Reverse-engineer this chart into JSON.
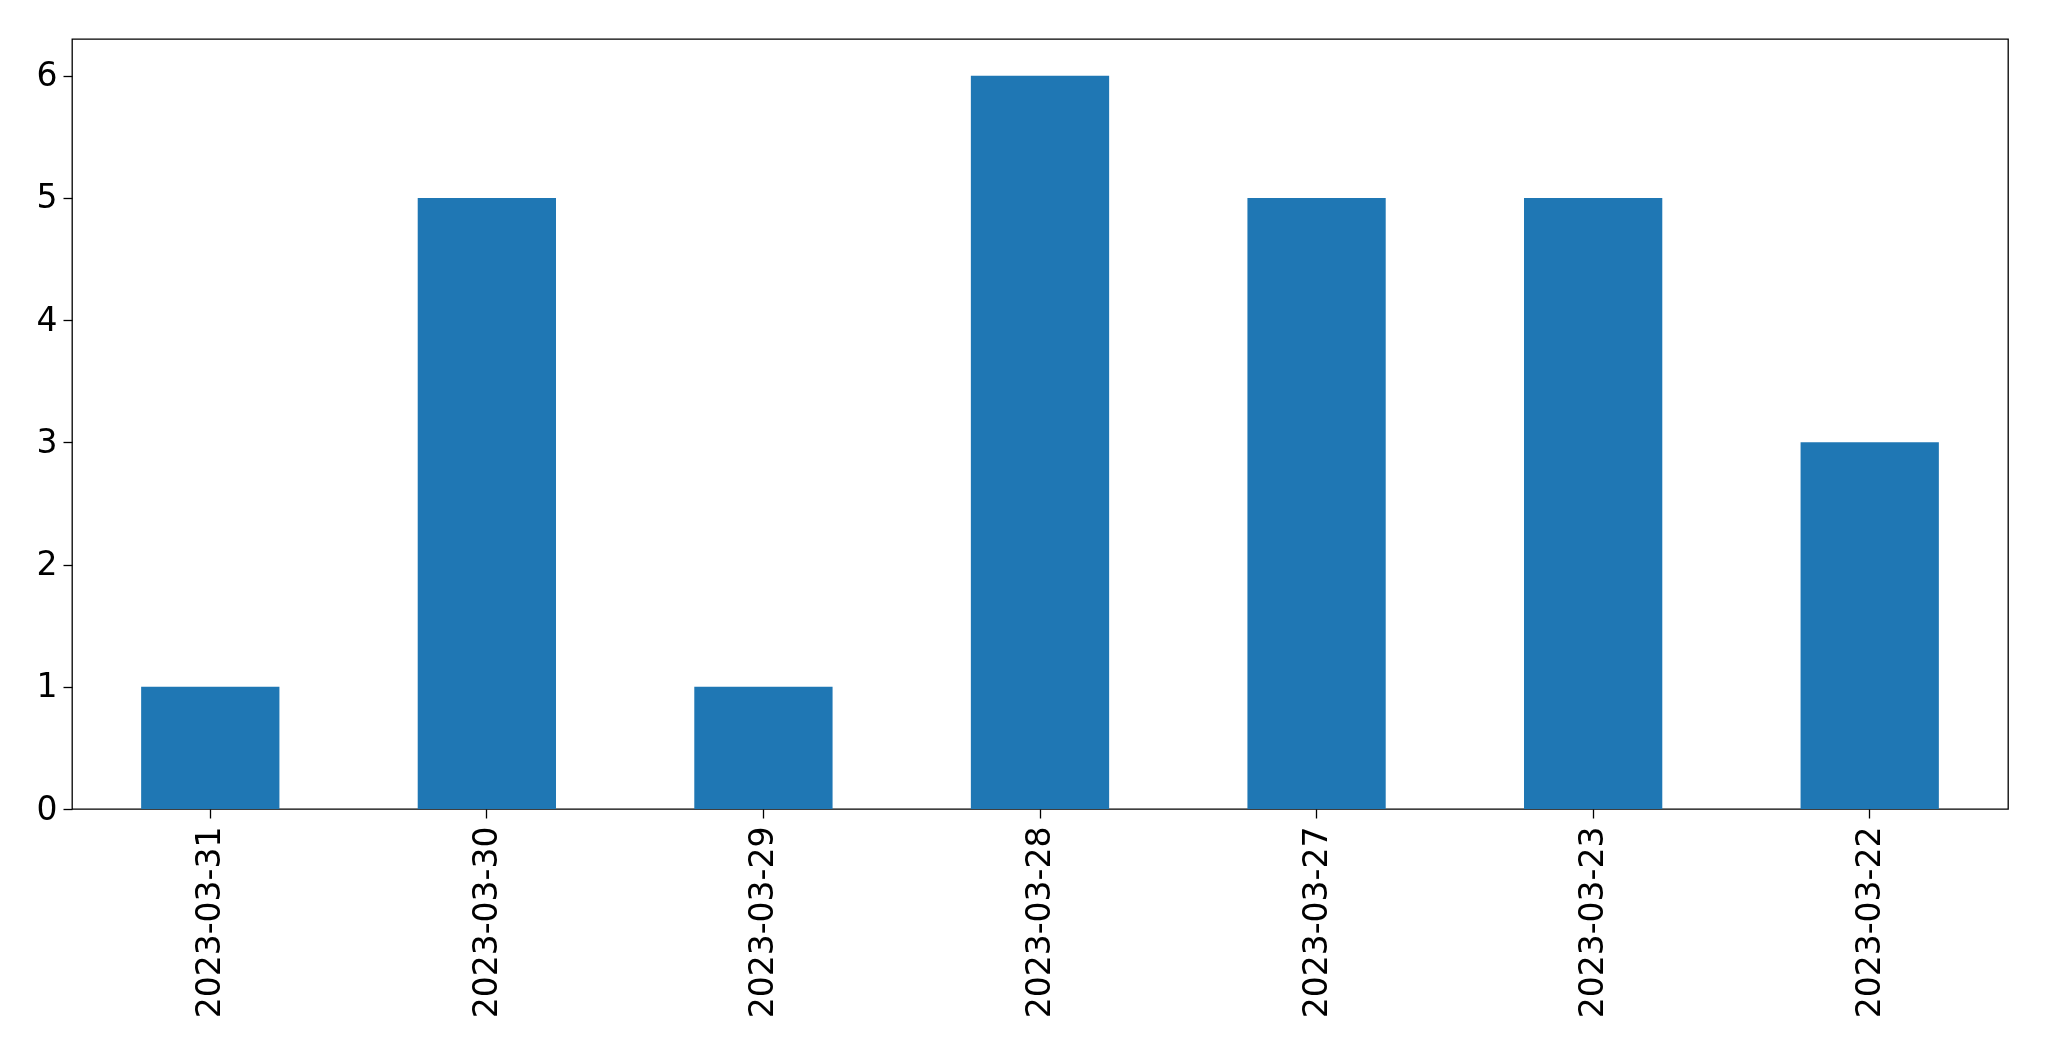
{
  "chart_data": {
    "type": "bar",
    "categories": [
      "2023-03-31",
      "2023-03-30",
      "2023-03-29",
      "2023-03-28",
      "2023-03-27",
      "2023-03-23",
      "2023-03-22"
    ],
    "values": [
      1,
      5,
      1,
      6,
      5,
      5,
      3
    ],
    "color": "#1f77b4",
    "ylim": [
      0,
      6.3
    ],
    "yticks": [
      0,
      1,
      2,
      3,
      4,
      5,
      6
    ]
  }
}
